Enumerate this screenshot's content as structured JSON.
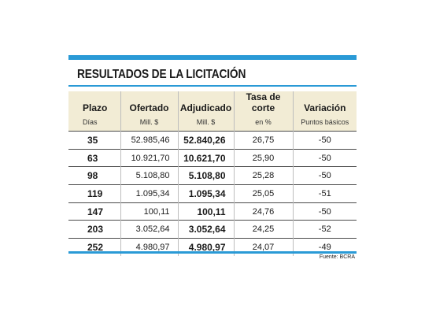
{
  "title": "RESULTADOS DE LA LICITACIÓN",
  "headers": [
    {
      "label": "Plazo",
      "sub": "Días"
    },
    {
      "label": "Ofertado",
      "sub": "Mill. $"
    },
    {
      "label": "Adjudicado",
      "sub": "Mill. $"
    },
    {
      "label": "Tasa de corte",
      "sub": "en %"
    },
    {
      "label": "Variación",
      "sub": "Puntos básicos"
    }
  ],
  "rows": [
    {
      "plazo": "35",
      "ofertado": "52.985,46",
      "adjudicado": "52.840,26",
      "tasa": "26,75",
      "variacion": "-50"
    },
    {
      "plazo": "63",
      "ofertado": "10.921,70",
      "adjudicado": "10.621,70",
      "tasa": "25,90",
      "variacion": "-50"
    },
    {
      "plazo": "98",
      "ofertado": "5.108,80",
      "adjudicado": "5.108,80",
      "tasa": "25,28",
      "variacion": "-50"
    },
    {
      "plazo": "119",
      "ofertado": "1.095,34",
      "adjudicado": "1.095,34",
      "tasa": "25,05",
      "variacion": "-51"
    },
    {
      "plazo": "147",
      "ofertado": "100,11",
      "adjudicado": "100,11",
      "tasa": "24,76",
      "variacion": "-50"
    },
    {
      "plazo": "203",
      "ofertado": "3.052,64",
      "adjudicado": "3.052,64",
      "tasa": "24,25",
      "variacion": "-52"
    },
    {
      "plazo": "252",
      "ofertado": "4.980,97",
      "adjudicado": "4.980,97",
      "tasa": "24,07",
      "variacion": "-49"
    }
  ],
  "source": "Fuente: BCRA",
  "colors": {
    "accent": "#2a9ad6",
    "header_bg": "#f2ecd5"
  }
}
